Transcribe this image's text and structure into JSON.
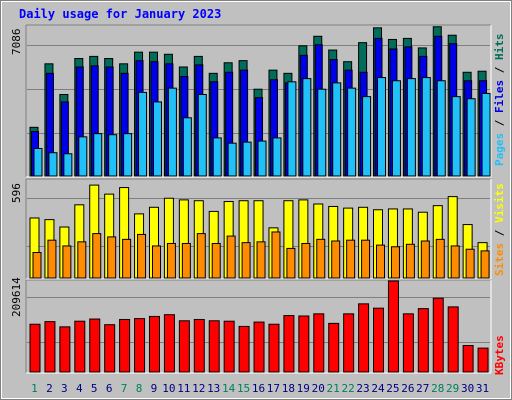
{
  "chart_data": [
    {
      "type": "bar",
      "title": "Daily usage for January 2023",
      "categories": [
        "1",
        "2",
        "3",
        "4",
        "5",
        "6",
        "7",
        "8",
        "9",
        "10",
        "11",
        "12",
        "13",
        "14",
        "15",
        "16",
        "17",
        "18",
        "19",
        "20",
        "21",
        "22",
        "23",
        "24",
        "25",
        "26",
        "27",
        "28",
        "29",
        "30",
        "31"
      ],
      "weekend_days": [
        "1",
        "7",
        "8",
        "14",
        "15",
        "21",
        "22",
        "28",
        "29"
      ],
      "ylim": [
        0,
        7086
      ],
      "y_tick_label": "7086",
      "side_labels": [
        "Pages",
        "Files",
        "Hits"
      ],
      "series": [
        {
          "name": "Hits",
          "color": "#006c5a",
          "values": [
            2300,
            5300,
            3850,
            5550,
            5650,
            5550,
            5300,
            5850,
            5850,
            5750,
            5150,
            5650,
            4850,
            5350,
            5450,
            4100,
            5000,
            4850,
            6150,
            6600,
            5950,
            5400,
            6300,
            7000,
            6450,
            6500,
            6050,
            7050,
            6650,
            4900,
            4950
          ]
        },
        {
          "name": "Files",
          "color": "#0000e8",
          "values": [
            2100,
            4850,
            3500,
            5150,
            5200,
            5150,
            4850,
            5450,
            5400,
            5300,
            4700,
            5250,
            4450,
            4900,
            5000,
            3700,
            4550,
            4400,
            5700,
            6200,
            5500,
            5000,
            4900,
            6500,
            6000,
            6100,
            5650,
            6600,
            6250,
            4500,
            4500
          ]
        },
        {
          "name": "Pages",
          "color": "#20c0f8",
          "values": [
            1300,
            1100,
            1050,
            1850,
            2000,
            1950,
            2000,
            3950,
            3500,
            4150,
            2750,
            3850,
            1800,
            1550,
            1600,
            1650,
            1800,
            4450,
            4600,
            4100,
            4400,
            4150,
            3750,
            4650,
            4500,
            4600,
            4650,
            4500,
            3750,
            3650,
            3900
          ]
        }
      ]
    },
    {
      "type": "bar",
      "ylim": [
        0,
        596
      ],
      "y_tick_label": "596",
      "side_labels": [
        "Sites",
        "Visits"
      ],
      "series": [
        {
          "name": "Visits",
          "color": "#ffff00",
          "values": [
            365,
            355,
            310,
            445,
            565,
            510,
            550,
            390,
            430,
            485,
            475,
            470,
            405,
            465,
            470,
            470,
            305,
            470,
            475,
            450,
            435,
            425,
            430,
            415,
            420,
            420,
            400,
            440,
            495,
            325,
            215
          ]
        },
        {
          "name": "Sites",
          "color": "#ff8c00",
          "values": [
            155,
            230,
            195,
            220,
            270,
            250,
            235,
            265,
            195,
            210,
            210,
            270,
            210,
            255,
            215,
            220,
            280,
            180,
            210,
            235,
            225,
            230,
            230,
            200,
            190,
            205,
            225,
            235,
            195,
            175,
            165
          ]
        }
      ]
    },
    {
      "type": "bar",
      "ylim": [
        0,
        209614
      ],
      "y_tick_label": "209614",
      "side_labels": [
        "KBytes"
      ],
      "series": [
        {
          "name": "KBytes",
          "color": "#ff0000",
          "values": [
            110000,
            116000,
            104000,
            117000,
            122000,
            109000,
            121000,
            123000,
            128000,
            132000,
            118000,
            121000,
            118000,
            117000,
            105000,
            115000,
            110000,
            130000,
            129000,
            134000,
            112000,
            134000,
            157000,
            147000,
            209614,
            134000,
            146000,
            170000,
            150000,
            61000,
            55000
          ]
        }
      ]
    }
  ],
  "colors": {
    "title": "#0000ff",
    "axis_text": "#000000",
    "weekday_label": "#000080",
    "weekend_label": "#00805c",
    "background": "#c0c0c0",
    "gridline": "#7f7f7f"
  }
}
